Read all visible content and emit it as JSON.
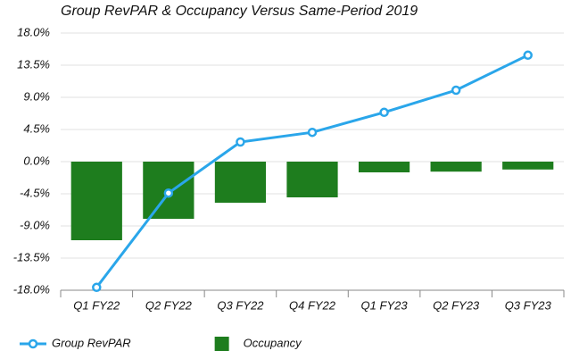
{
  "chart_data": {
    "type": "combo",
    "title": "Group RevPAR & Occupancy Versus Same-Period 2019",
    "categories": [
      "Q1 FY22",
      "Q2 FY22",
      "Q3 FY22",
      "Q4 FY22",
      "Q1 FY23",
      "Q2 FY23",
      "Q3 FY23"
    ],
    "series": [
      {
        "name": "Group RevPAR",
        "type": "line",
        "color": "#2aa6ea",
        "values": [
          -17.6,
          -4.4,
          2.75,
          4.1,
          6.9,
          10.0,
          14.9
        ]
      },
      {
        "name": "Occupancy",
        "type": "bar",
        "color": "#1e7d1e",
        "values": [
          -11.0,
          -8.0,
          -5.75,
          -5.0,
          -1.5,
          -1.4,
          -1.1
        ]
      }
    ],
    "ylim": [
      -18,
      18
    ],
    "yticks": [
      {
        "value": 18,
        "label": "18.0%"
      },
      {
        "value": 13.5,
        "label": "13.5%"
      },
      {
        "value": 9,
        "label": "9.0%"
      },
      {
        "value": 4.5,
        "label": "4.5%"
      },
      {
        "value": 0,
        "label": "0.0%"
      },
      {
        "value": -4.5,
        "label": "-4.5%"
      },
      {
        "value": -9,
        "label": "-9.0%"
      },
      {
        "value": -13.5,
        "label": "-13.5%"
      },
      {
        "value": -18,
        "label": "-18.0%"
      }
    ],
    "grid": true,
    "legend": "bottom"
  }
}
